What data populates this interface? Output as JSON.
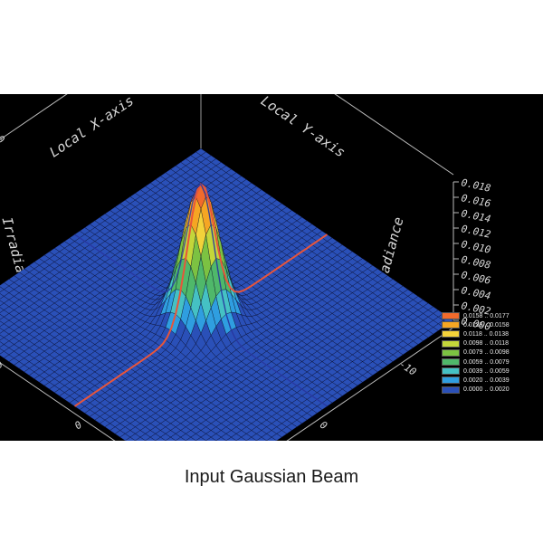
{
  "caption": "Input Gaussian Beam",
  "chart_data": {
    "type": "surface",
    "subtype": "3d-mesh",
    "function": "gaussian",
    "peak_irradiance": 0.0177,
    "beam_radius": 3.2,
    "x": {
      "label": "Local X-axis",
      "range": [
        -15,
        15
      ],
      "ticks": [
        "10",
        "0",
        "-10"
      ]
    },
    "y": {
      "label": "Local Y-axis",
      "range": [
        -15,
        15
      ],
      "ticks": [
        "10",
        "0",
        "-10"
      ]
    },
    "z": {
      "label": "Irradiance",
      "range": [
        0.0,
        0.018
      ],
      "ticks": [
        "0.000",
        "0.002",
        "0.004",
        "0.006",
        "0.008",
        "0.010",
        "0.012",
        "0.014",
        "0.016",
        "0.018"
      ]
    },
    "legend": {
      "position": "right",
      "entries": [
        {
          "label": "0.0158 .. 0.0177",
          "color": "#f26b2c"
        },
        {
          "label": "0.0138 .. 0.0158",
          "color": "#f5a623"
        },
        {
          "label": "0.0118 .. 0.0138",
          "color": "#f3d23a"
        },
        {
          "label": "0.0098 .. 0.0118",
          "color": "#c4d63a"
        },
        {
          "label": "0.0079 .. 0.0098",
          "color": "#7cc242"
        },
        {
          "label": "0.0059 .. 0.0079",
          "color": "#4fb86a"
        },
        {
          "label": "0.0039 .. 0.0059",
          "color": "#45c1c4"
        },
        {
          "label": "0.0020 .. 0.0039",
          "color": "#2f9ee0"
        },
        {
          "label": "0.0000 .. 0.0020",
          "color": "#2a50b8"
        }
      ]
    },
    "cross_section_color": "#e8553a"
  }
}
